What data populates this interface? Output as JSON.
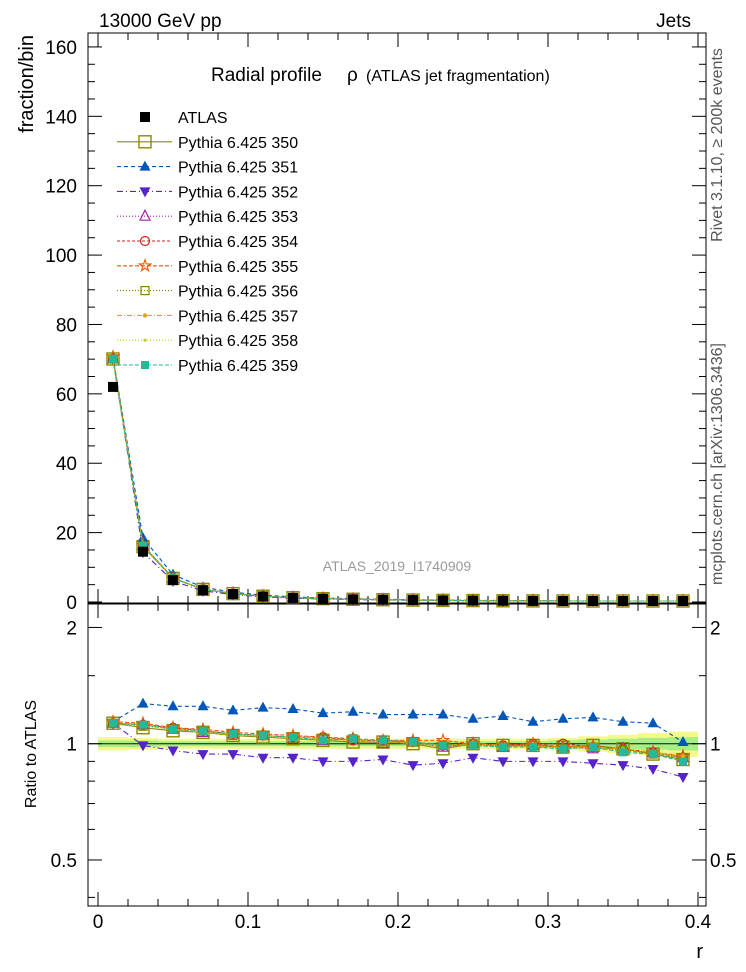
{
  "header": {
    "left": "13000 GeV pp",
    "right": "Jets"
  },
  "side_labels": {
    "top": "Rivet 3.1.10, ≥ 200k events",
    "bottom": "mcplots.cern.ch [arXiv:1306.3436]"
  },
  "watermark": "ATLAS_2019_I1740909",
  "chart_data": [
    {
      "type": "line",
      "panel": "main",
      "title_main": "Radial profile",
      "title_symbol": "ρ",
      "title_rest": "(ATLAS jet fragmentation)",
      "xlabel": "r",
      "ylabel": "fraction/bin",
      "xlim": [
        0,
        0.4
      ],
      "ylim": [
        0,
        162
      ],
      "yticks": [
        0,
        20,
        40,
        60,
        80,
        100,
        120,
        140,
        160
      ],
      "x": [
        0.01,
        0.03,
        0.05,
        0.07,
        0.09,
        0.11,
        0.13,
        0.15,
        0.17,
        0.19,
        0.21,
        0.23,
        0.25,
        0.27,
        0.29,
        0.31,
        0.33,
        0.35,
        0.37,
        0.39
      ],
      "data": {
        "name": "ATLAS",
        "values": [
          62,
          14.5,
          6.3,
          3.4,
          2.3,
          1.6,
          1.2,
          0.95,
          0.78,
          0.65,
          0.55,
          0.47,
          0.41,
          0.36,
          0.32,
          0.28,
          0.25,
          0.22,
          0.2,
          0.18
        ]
      }
    },
    {
      "type": "line",
      "panel": "ratio",
      "ylabel": "Ratio to ATLAS",
      "xlabel": "r",
      "xlim": [
        0,
        0.4
      ],
      "ylim": [
        0.38,
        2.3
      ],
      "yticks": [
        0.5,
        1,
        2
      ],
      "ytick_labels": [
        "0.5",
        "1",
        "2"
      ],
      "xticks": [
        0,
        0.1,
        0.2,
        0.3,
        0.4
      ],
      "xtick_labels": [
        "0",
        "0.1",
        "0.2",
        "0.3",
        "0.4"
      ],
      "x": [
        0.01,
        0.03,
        0.05,
        0.07,
        0.09,
        0.11,
        0.13,
        0.15,
        0.17,
        0.19,
        0.21,
        0.23,
        0.25,
        0.27,
        0.29,
        0.31,
        0.33,
        0.35,
        0.37,
        0.39
      ],
      "band_inner": [
        0.02,
        0.02,
        0.015,
        0.015,
        0.015,
        0.015,
        0.015,
        0.015,
        0.015,
        0.015,
        0.015,
        0.015,
        0.015,
        0.015,
        0.015,
        0.02,
        0.025,
        0.03,
        0.035,
        0.04
      ],
      "band_outer": [
        0.04,
        0.035,
        0.03,
        0.03,
        0.03,
        0.03,
        0.03,
        0.03,
        0.03,
        0.03,
        0.03,
        0.03,
        0.03,
        0.03,
        0.03,
        0.035,
        0.045,
        0.055,
        0.065,
        0.075
      ],
      "series": [
        {
          "name": "Pythia 6.425 350",
          "color": "#8a8a00",
          "marker": "square-open-large",
          "dash": "",
          "values": [
            1.13,
            1.1,
            1.08,
            1.07,
            1.05,
            1.04,
            1.03,
            1.02,
            1.01,
            1.01,
            1.0,
            0.97,
            1.0,
            0.99,
            0.99,
            0.98,
            0.99,
            0.97,
            0.94,
            0.91
          ]
        },
        {
          "name": "Pythia 6.425 351",
          "color": "#0057b8",
          "marker": "triangle-up",
          "dash": "4,3",
          "values": [
            1.14,
            1.27,
            1.25,
            1.25,
            1.22,
            1.24,
            1.23,
            1.2,
            1.21,
            1.19,
            1.19,
            1.19,
            1.16,
            1.18,
            1.14,
            1.16,
            1.17,
            1.14,
            1.13,
            1.01
          ]
        },
        {
          "name": "Pythia 6.425 352",
          "color": "#5522cc",
          "marker": "triangle-down",
          "dash": "6,3,1,3",
          "values": [
            1.13,
            0.99,
            0.96,
            0.94,
            0.94,
            0.92,
            0.92,
            0.9,
            0.9,
            0.91,
            0.88,
            0.89,
            0.92,
            0.9,
            0.9,
            0.9,
            0.89,
            0.88,
            0.86,
            0.82
          ]
        },
        {
          "name": "Pythia 6.425 353",
          "color": "#aa22aa",
          "marker": "triangle-up-open",
          "dash": "1,2",
          "values": [
            1.13,
            1.12,
            1.09,
            1.07,
            1.06,
            1.05,
            1.03,
            1.02,
            1.03,
            1.0,
            1.01,
            0.98,
            1.0,
            0.98,
            0.99,
            0.98,
            0.97,
            0.97,
            0.95,
            0.92
          ]
        },
        {
          "name": "Pythia 6.425 354",
          "color": "#cc2222",
          "marker": "circle-open",
          "dash": "3,2",
          "values": [
            1.13,
            1.12,
            1.1,
            1.08,
            1.06,
            1.05,
            1.04,
            1.04,
            1.02,
            1.02,
            1.01,
            0.99,
            1.0,
            0.99,
            1.0,
            1.0,
            0.98,
            0.97,
            0.95,
            0.92
          ]
        },
        {
          "name": "Pythia 6.425 355",
          "color": "#ee5500",
          "marker": "star",
          "dash": "4,2",
          "values": [
            1.14,
            1.13,
            1.1,
            1.09,
            1.07,
            1.06,
            1.05,
            1.04,
            1.03,
            1.02,
            1.02,
            1.02,
            1.0,
            0.99,
            1.0,
            0.98,
            0.99,
            0.96,
            0.95,
            0.93
          ]
        },
        {
          "name": "Pythia 6.425 356",
          "color": "#7a8a00",
          "marker": "square-open",
          "dash": "1,2",
          "values": [
            1.13,
            1.11,
            1.09,
            1.08,
            1.05,
            1.05,
            1.03,
            1.03,
            1.03,
            1.01,
            1.01,
            0.99,
            1.0,
            0.98,
            0.99,
            0.97,
            0.98,
            0.96,
            0.94,
            0.92
          ]
        },
        {
          "name": "Pythia 6.425 357",
          "color": "#ddaa00",
          "marker": "dot",
          "dash": "5,2,1,2",
          "values": [
            1.13,
            1.12,
            1.09,
            1.07,
            1.06,
            1.05,
            1.04,
            1.03,
            1.02,
            1.01,
            1.01,
            0.99,
            1.0,
            0.99,
            0.98,
            0.98,
            0.98,
            0.97,
            0.95,
            0.93
          ]
        },
        {
          "name": "Pythia 6.425 358",
          "color": "#c4cc00",
          "marker": "dot-small",
          "dash": "1,2",
          "values": [
            1.12,
            1.11,
            1.09,
            1.07,
            1.05,
            1.05,
            1.03,
            1.02,
            1.02,
            1.01,
            1.0,
            0.99,
            0.99,
            0.98,
            0.99,
            0.97,
            0.98,
            0.96,
            0.95,
            0.92
          ]
        },
        {
          "name": "Pythia 6.425 359",
          "color": "#22bb99",
          "marker": "square-filled",
          "dash": "4,2",
          "values": [
            1.13,
            1.12,
            1.09,
            1.08,
            1.06,
            1.05,
            1.04,
            1.02,
            1.03,
            1.02,
            1.01,
            0.99,
            0.99,
            0.98,
            0.98,
            0.97,
            0.98,
            0.95,
            0.94,
            0.9
          ]
        }
      ]
    }
  ]
}
